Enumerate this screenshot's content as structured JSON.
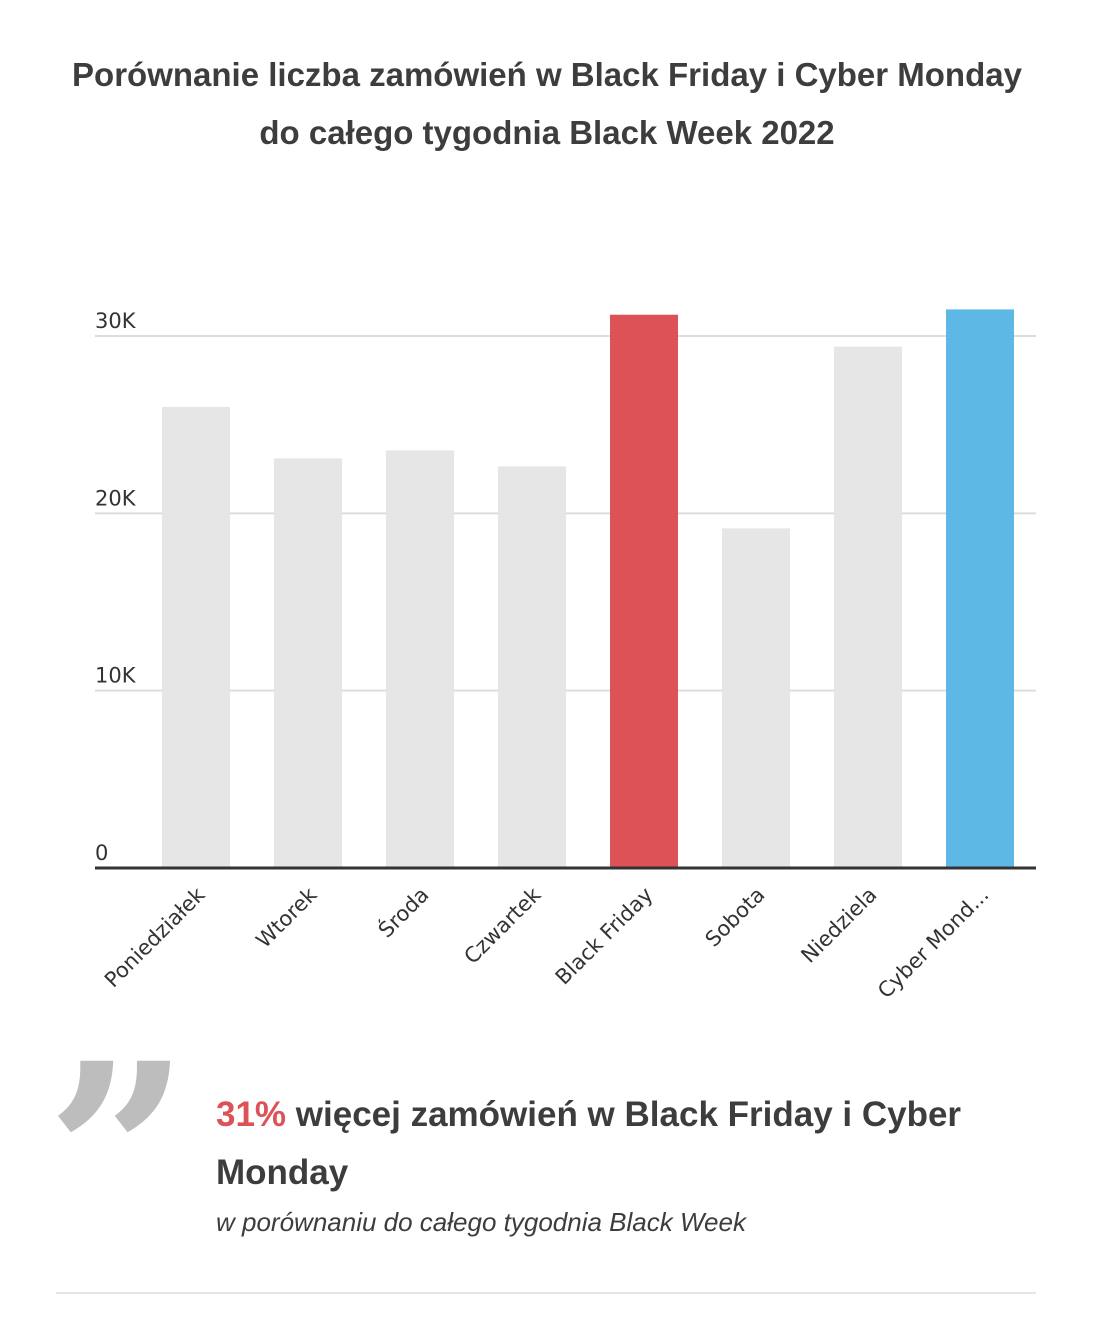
{
  "chart_data": {
    "type": "bar",
    "title": "Porównanie liczba zamówień w Black Friday i Cyber Monday do całego tygodnia Black Week 2022",
    "categories": [
      "Poniedziałek",
      "Wtorek",
      "Środa",
      "Czwartek",
      "Black Friday",
      "Sobota",
      "Niedziela",
      "Cyber Mond..."
    ],
    "values": [
      26000,
      23100,
      23550,
      22650,
      31200,
      19150,
      29400,
      31500
    ],
    "colors": [
      "#e6e6e6",
      "#e6e6e6",
      "#e6e6e6",
      "#e6e6e6",
      "#dc5257",
      "#e6e6e6",
      "#e6e6e6",
      "#5eb8e6"
    ],
    "ylim": [
      0,
      31500
    ],
    "yticks": [
      0,
      10000,
      20000,
      30000
    ],
    "ytick_labels": [
      "0",
      "10K",
      "20K",
      "30K"
    ],
    "grid": true,
    "legend": "none"
  },
  "callout": {
    "quote_icon": "quote-icon",
    "percent": "31%",
    "text": " więcej zamówień w Black Friday i Cyber Monday",
    "subtext": "w porównaniu do całego tygodnia Black Week"
  }
}
